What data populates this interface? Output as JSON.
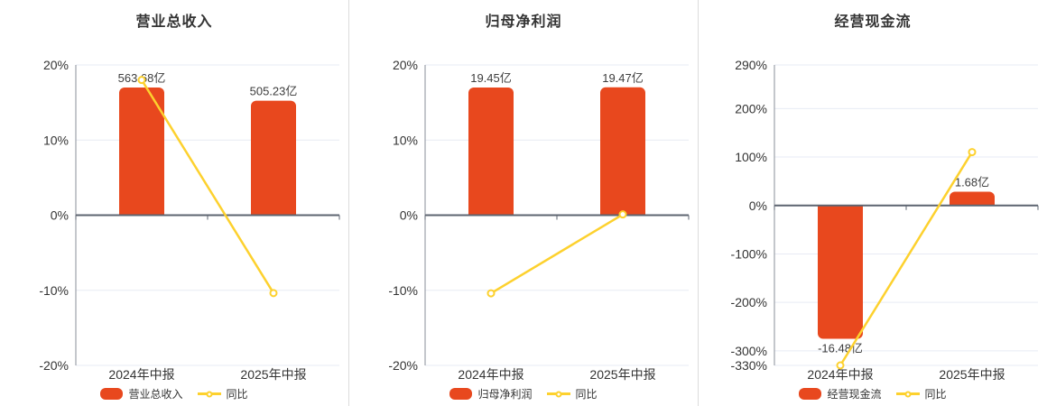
{
  "page": {
    "background": "#ffffff"
  },
  "colors": {
    "bar": "#e8481e",
    "line": "#fdd12e",
    "grid": "#e7ebf4",
    "zero_line": "#5d6470",
    "axis": "#8a8f99",
    "text": "#333333"
  },
  "chart_data": [
    {
      "type": "bar+line",
      "title": "营业总收入",
      "categories": [
        "2024年中报",
        "2025年中报"
      ],
      "bar_series": {
        "name": "营业总收入",
        "unit": "亿",
        "values": [
          563.68,
          505.23
        ],
        "labels": [
          "563.68亿",
          "505.23亿"
        ],
        "display_pct": [
          17.0,
          15.24
        ]
      },
      "line_series": {
        "name": "同比",
        "values_pct": [
          18.0,
          -10.37
        ]
      },
      "y_axis": {
        "range": [
          -20,
          20
        ],
        "ticks": [
          20,
          10,
          0,
          -10,
          -20
        ],
        "tick_labels": [
          "20%",
          "10%",
          "0%",
          "-10%",
          "-20%"
        ]
      },
      "legend": [
        "营业总收入",
        "同比"
      ]
    },
    {
      "type": "bar+line",
      "title": "归母净利润",
      "categories": [
        "2024年中报",
        "2025年中报"
      ],
      "bar_series": {
        "name": "归母净利润",
        "unit": "亿",
        "values": [
          19.45,
          19.47
        ],
        "labels": [
          "19.45亿",
          "19.47亿"
        ],
        "display_pct": [
          17.0,
          17.02
        ]
      },
      "line_series": {
        "name": "同比",
        "values_pct": [
          -10.4,
          0.1
        ]
      },
      "y_axis": {
        "range": [
          -20,
          20
        ],
        "ticks": [
          20,
          10,
          0,
          -10,
          -20
        ],
        "tick_labels": [
          "20%",
          "10%",
          "0%",
          "-10%",
          "-20%"
        ]
      },
      "legend": [
        "归母净利润",
        "同比"
      ]
    },
    {
      "type": "bar+line",
      "title": "经营现金流",
      "categories": [
        "2024年中报",
        "2025年中报"
      ],
      "bar_series": {
        "name": "经营现金流",
        "unit": "亿",
        "values": [
          -16.48,
          1.68
        ],
        "labels": [
          "-16.48亿",
          "1.68亿"
        ],
        "display_pct": [
          -275,
          28.5
        ]
      },
      "line_series": {
        "name": "同比",
        "values_pct": [
          -330,
          110.2
        ]
      },
      "y_axis": {
        "range": [
          -330,
          290
        ],
        "ticks": [
          290,
          200,
          100,
          0,
          -100,
          -200,
          -300,
          -330
        ],
        "tick_labels": [
          "290%",
          "200%",
          "100%",
          "0%",
          "-100%",
          "-200%",
          "-300%",
          "-330%"
        ]
      },
      "legend": [
        "经营现金流",
        "同比"
      ]
    }
  ]
}
